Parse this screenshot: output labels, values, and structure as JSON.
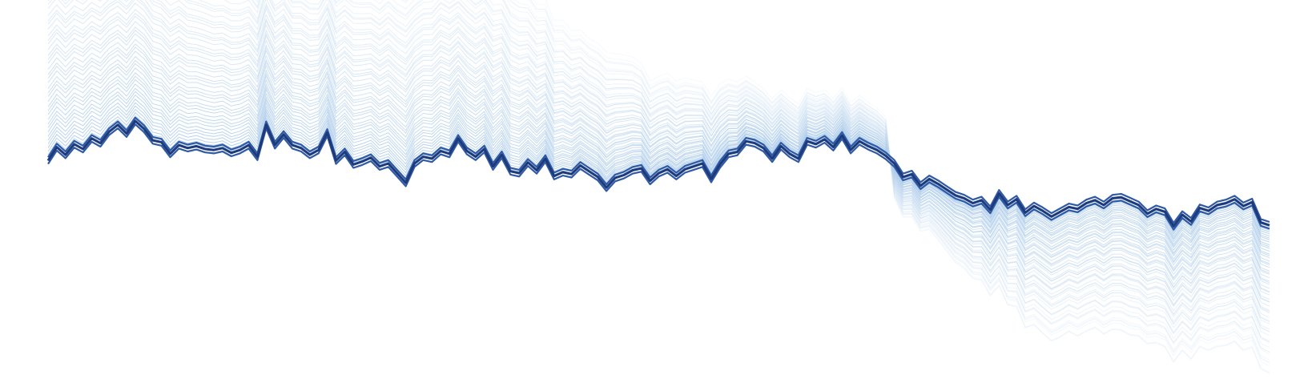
{
  "chart_data": {
    "type": "line",
    "title": "",
    "xlabel": "",
    "ylabel": "",
    "grid": false,
    "axes_visible": false,
    "legend": "none",
    "x_range": [
      0,
      140
    ],
    "y_range": [
      -14,
      24
    ],
    "colors": {
      "main_line": "#1f3a7a",
      "main_line_light": "#2e5aa6",
      "fan_light": "#dbe8f6",
      "fan_mid": "#9fc3e6"
    },
    "main_series": {
      "name": "",
      "x": [
        0,
        1,
        2,
        3,
        4,
        5,
        6,
        7,
        8,
        9,
        10,
        11,
        12,
        13,
        14,
        15,
        16,
        17,
        18,
        19,
        20,
        21,
        22,
        23,
        24,
        25,
        26,
        27,
        28,
        29,
        30,
        31,
        32,
        33,
        34,
        35,
        36,
        37,
        38,
        39,
        40,
        41,
        42,
        43,
        44,
        45,
        46,
        47,
        48,
        49,
        50,
        51,
        52,
        53,
        54,
        55,
        56,
        57,
        58,
        59,
        60,
        61,
        62,
        63,
        64,
        65,
        66,
        67,
        68,
        69,
        70,
        71,
        72,
        73,
        74,
        75,
        76,
        77,
        78,
        79,
        80,
        81,
        82,
        83,
        84,
        85,
        86,
        87,
        88,
        89,
        90,
        91,
        92,
        93,
        94,
        95,
        96,
        97,
        98,
        99,
        100,
        101,
        102,
        103,
        104,
        105,
        106,
        107,
        108,
        109,
        110,
        111,
        112,
        113,
        114,
        115,
        116,
        117,
        118,
        119,
        120,
        121,
        122,
        123,
        124,
        125,
        126,
        127,
        128,
        129,
        130,
        131,
        132,
        133,
        134,
        135,
        136,
        137,
        138,
        139,
        140
      ],
      "y": [
        8.2,
        9.6,
        8.8,
        9.9,
        9.4,
        10.5,
        10.0,
        11.2,
        11.9,
        11.0,
        12.3,
        11.5,
        10.3,
        10.1,
        8.9,
        9.8,
        9.5,
        9.7,
        9.4,
        9.3,
        9.5,
        9.0,
        9.3,
        9.8,
        8.6,
        11.9,
        9.8,
        10.9,
        9.8,
        9.5,
        8.8,
        9.3,
        11.1,
        8.2,
        9.1,
        7.8,
        8.1,
        8.5,
        7.6,
        7.9,
        6.9,
        5.9,
        7.9,
        8.6,
        8.4,
        9.2,
        8.9,
        10.5,
        9.2,
        8.6,
        9.4,
        7.6,
        8.8,
        7.1,
        6.9,
        8.0,
        7.2,
        8.4,
        6.6,
        7.0,
        6.8,
        7.7,
        7.1,
        6.5,
        5.4,
        6.4,
        6.7,
        7.2,
        7.4,
        6.1,
        6.9,
        7.3,
        6.6,
        7.3,
        7.6,
        7.9,
        6.3,
        7.8,
        8.9,
        9.1,
        10.2,
        10.0,
        9.5,
        8.4,
        9.7,
        8.9,
        8.4,
        10.2,
        9.9,
        10.4,
        9.6,
        10.8,
        9.3,
        10.2,
        9.7,
        9.3,
        8.7,
        7.9,
        6.5,
        6.8,
        5.6,
        6.3,
        5.8,
        5.2,
        4.6,
        4.3,
        3.8,
        4.1,
        3.1,
        4.8,
        3.6,
        4.2,
        2.8,
        3.5,
        3.0,
        2.4,
        2.9,
        3.4,
        3.2,
        3.8,
        4.1,
        3.6,
        4.3,
        4.4,
        4.0,
        3.6,
        2.7,
        3.2,
        2.9,
        1.4,
        2.6,
        1.9,
        3.3,
        3.0,
        3.6,
        3.8,
        4.2,
        3.5,
        3.9,
        1.8,
        1.5
      ]
    },
    "fan_spread": {
      "step_count": 60,
      "max_offset": [
        30.0,
        29.4,
        29.0,
        28.6,
        28.6,
        28.1,
        28.0,
        27.4,
        27.1,
        27.3,
        26.9,
        27.0,
        26.8,
        26.4,
        26.8,
        26.1,
        25.2,
        24.5,
        24.5,
        24.0,
        23.8,
        23.8,
        23.3,
        23.1,
        23.0,
        22.8,
        23.2,
        22.6,
        22.0,
        22.5,
        22.5,
        21.7,
        21.4,
        22.0,
        21.8,
        22.5,
        22.0,
        21.5,
        21.8,
        22.5,
        22.7,
        23.3,
        22.0,
        22.0,
        22.4,
        22.8,
        22.4,
        21.0,
        21.5,
        21.2,
        21.0,
        21.6,
        20.2,
        20.1,
        19.6,
        18.2,
        17.6,
        16.3,
        15.9,
        15.5,
        14.6,
        13.8,
        13.5,
        13.6,
        13.8,
        12.6,
        12.2,
        11.5,
        10.6,
        10.1,
        9.8,
        9.7,
        9.6,
        9.2,
        8.7,
        8.2,
        8.3,
        8.1,
        7.5,
        7.0,
        6.5,
        6.1,
        5.9,
        6.0,
        5.6,
        5.6,
        5.4,
        5.2,
        5.1,
        4.9,
        4.8,
        4.7,
        4.7,
        4.5,
        4.3,
        4.1,
        3.8,
        -3.5,
        -4.1,
        -4.4,
        -4.7,
        -5.2,
        -5.8,
        -6.4,
        -7.0,
        -7.3,
        -7.9,
        -8.4,
        -9.0,
        -9.7,
        -10.5,
        -11.3,
        -12.1,
        -12.5,
        -12.9,
        -13.1,
        -13.2,
        -13.1,
        -13.4,
        -13.5,
        -13.4,
        -13.6,
        -13.8,
        -14.0,
        -14.1,
        -13.8,
        -13.7,
        -14.1,
        -14.2,
        -14.3,
        -14.3,
        -14.5,
        -14.6,
        -14.7,
        -14.9,
        -15.0,
        -15.0,
        -15.2,
        -15.3,
        -15.4,
        -15.6
      ]
    }
  }
}
